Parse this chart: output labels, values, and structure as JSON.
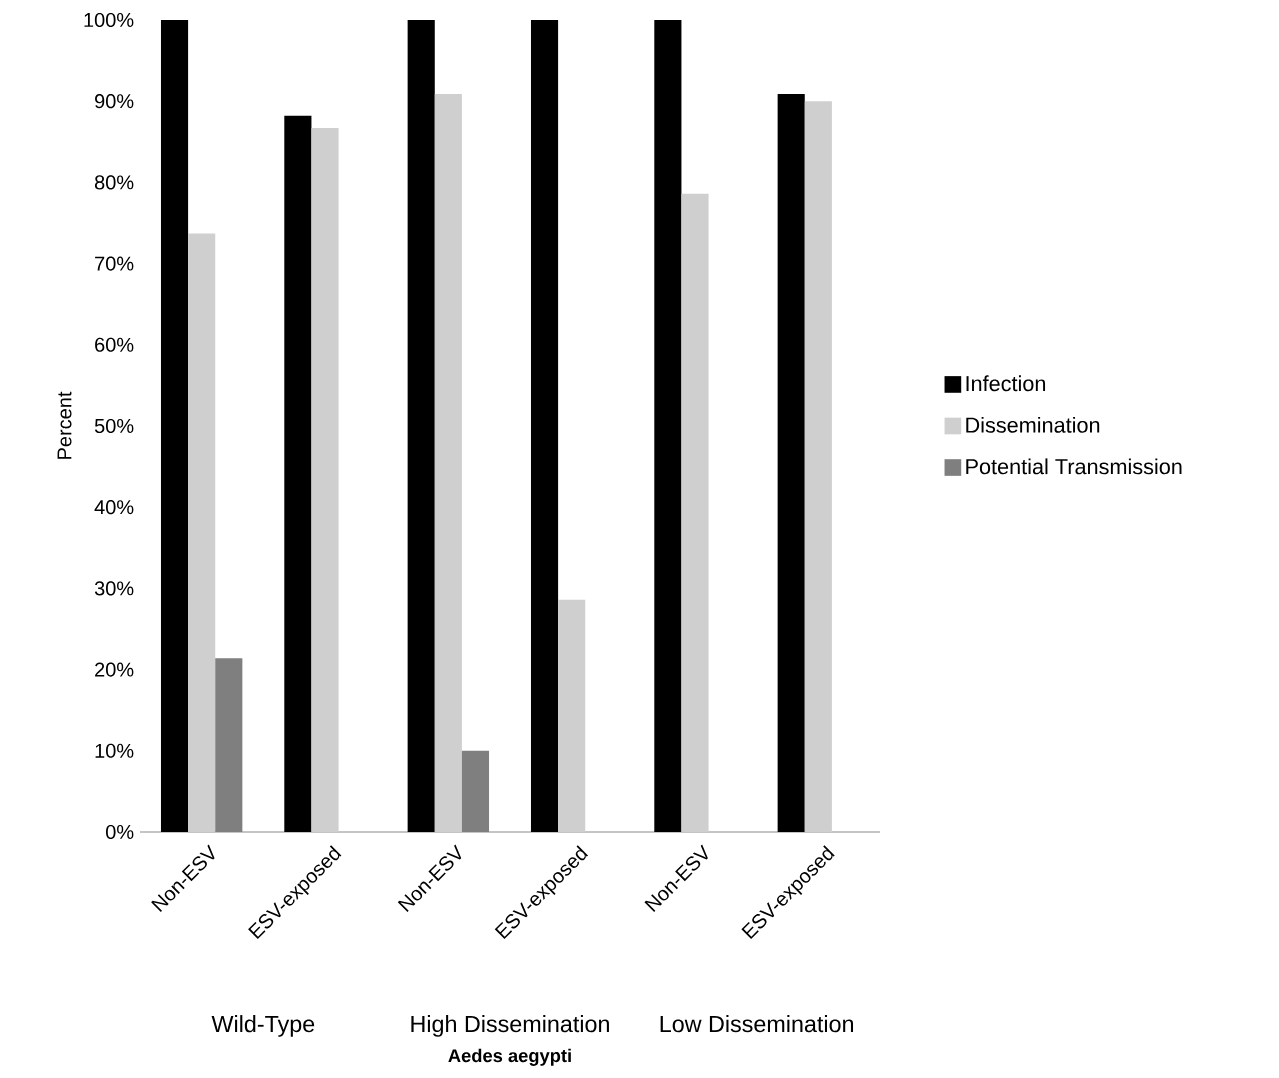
{
  "chart_data": {
    "type": "bar",
    "categories": [
      "Non-ESV",
      "ESV-exposed",
      "Non-ESV",
      "ESV-exposed",
      "Non-ESV",
      "ESV-exposed"
    ],
    "series": [
      {
        "name": "Infection",
        "color": "#000000",
        "values": [
          100,
          88.2,
          100,
          100,
          100,
          90.9
        ]
      },
      {
        "name": "Dissemination",
        "color": "#d0cfd0",
        "values": [
          73.7,
          86.7,
          90.9,
          28.6,
          78.6,
          90.0
        ]
      },
      {
        "name": "Potential Transmission",
        "color": "#7f7f7f",
        "values": [
          21.4,
          0,
          10.0,
          0,
          0,
          0
        ]
      }
    ],
    "ylabel": "Percent",
    "annotations": [
      "Wild-Type",
      "High Dissemination",
      "Low Dissemination",
      "**Aedes aegypti**"
    ],
    "ylim": [
      0,
      100
    ],
    "yticks": [
      {
        "value": 0,
        "label": "0%"
      },
      {
        "value": 10,
        "label": "10%"
      },
      {
        "value": 20,
        "label": "20%"
      },
      {
        "value": 30,
        "label": "30%"
      },
      {
        "value": 40,
        "label": "40%"
      },
      {
        "value": 50,
        "label": "50%"
      },
      {
        "value": 60,
        "label": "60%"
      },
      {
        "value": 70,
        "label": "70%"
      },
      {
        "value": 80,
        "label": "80%"
      },
      {
        "value": 90,
        "label": "90%"
      },
      {
        "value": 100,
        "label": "100%"
      }
    ],
    "grid": false,
    "legend": "right"
  }
}
